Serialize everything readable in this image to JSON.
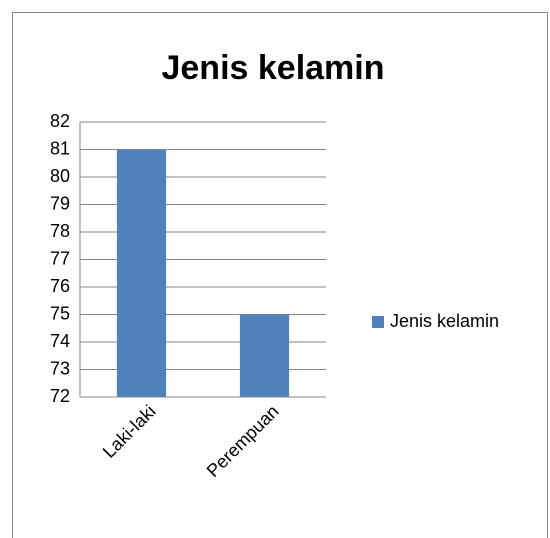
{
  "chart_data": {
    "type": "bar",
    "title": "Jenis kelamin",
    "categories": [
      "Laki-laki",
      "Perempuan"
    ],
    "series": [
      {
        "name": "Jenis kelamin",
        "color": "#4f81bd",
        "values": [
          81,
          75
        ]
      }
    ],
    "ylim": [
      72,
      82
    ],
    "yticks": [
      72,
      73,
      74,
      75,
      76,
      77,
      78,
      79,
      80,
      81,
      82
    ],
    "grid": true,
    "legend": "right"
  }
}
